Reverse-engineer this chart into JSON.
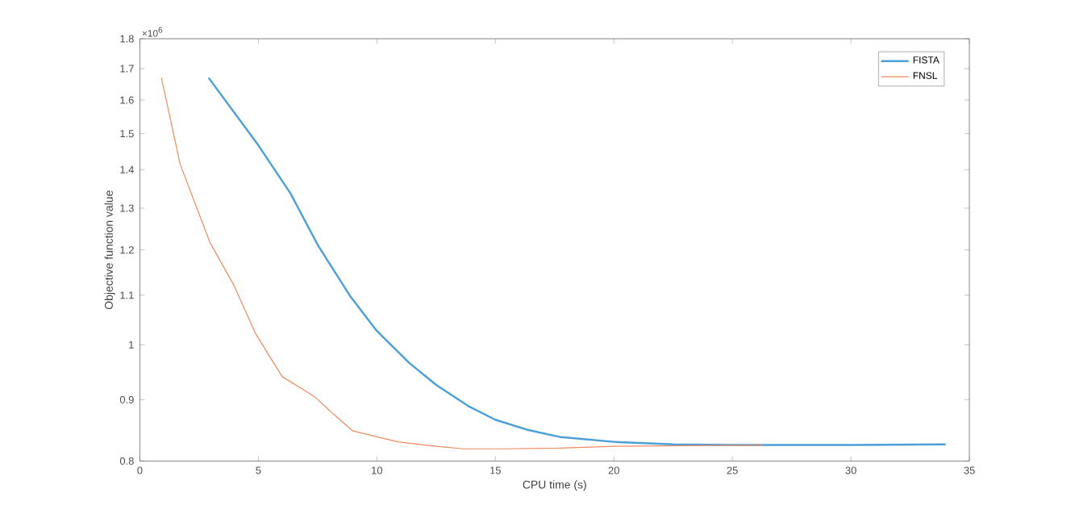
{
  "chart_data": {
    "type": "line",
    "xlabel": "CPU time (s)",
    "ylabel": "Objective function value",
    "annotations": [
      "×10$^{6}$"
    ],
    "log": "y",
    "xlim": [
      0,
      35
    ],
    "xticks": [
      0,
      5,
      10,
      15,
      20,
      25,
      30,
      35
    ],
    "ylim": [
      0.8,
      1.8
    ],
    "yticks": [
      0.8,
      0.9,
      1,
      1.1,
      1.2,
      1.3,
      1.4,
      1.5,
      1.6,
      1.7,
      1.8
    ],
    "legend": "top right",
    "grid": false,
    "marker": "none",
    "line_style": "solid",
    "series": [
      {
        "name": "FISTA",
        "color": "#4a9fd8",
        "x": [
          2.9,
          5.0,
          6.36,
          7.5,
          8.86,
          10.0,
          11.36,
          12.5,
          13.86,
          15.0,
          16.4,
          17.7,
          20.0,
          22.5,
          25.0,
          30.0,
          34.0
        ],
        "values": [
          1.67,
          1.467,
          1.337,
          1.212,
          1.099,
          1.027,
          0.966,
          0.926,
          0.889,
          0.866,
          0.849,
          0.838,
          0.83,
          0.826,
          0.825,
          0.825,
          0.826
        ]
      },
      {
        "name": "FNSL",
        "color": "#ef8a62",
        "x": [
          0.91,
          1.7,
          2.95,
          3.97,
          4.88,
          6.0,
          7.38,
          8.18,
          8.97,
          10.0,
          10.9,
          12.5,
          13.64,
          15.45,
          17.7,
          20.0,
          23.0,
          26.3
        ],
        "values": [
          1.67,
          1.415,
          1.218,
          1.121,
          1.022,
          0.941,
          0.905,
          0.875,
          0.848,
          0.838,
          0.83,
          0.823,
          0.819,
          0.819,
          0.82,
          0.823,
          0.824,
          0.825
        ]
      }
    ]
  }
}
